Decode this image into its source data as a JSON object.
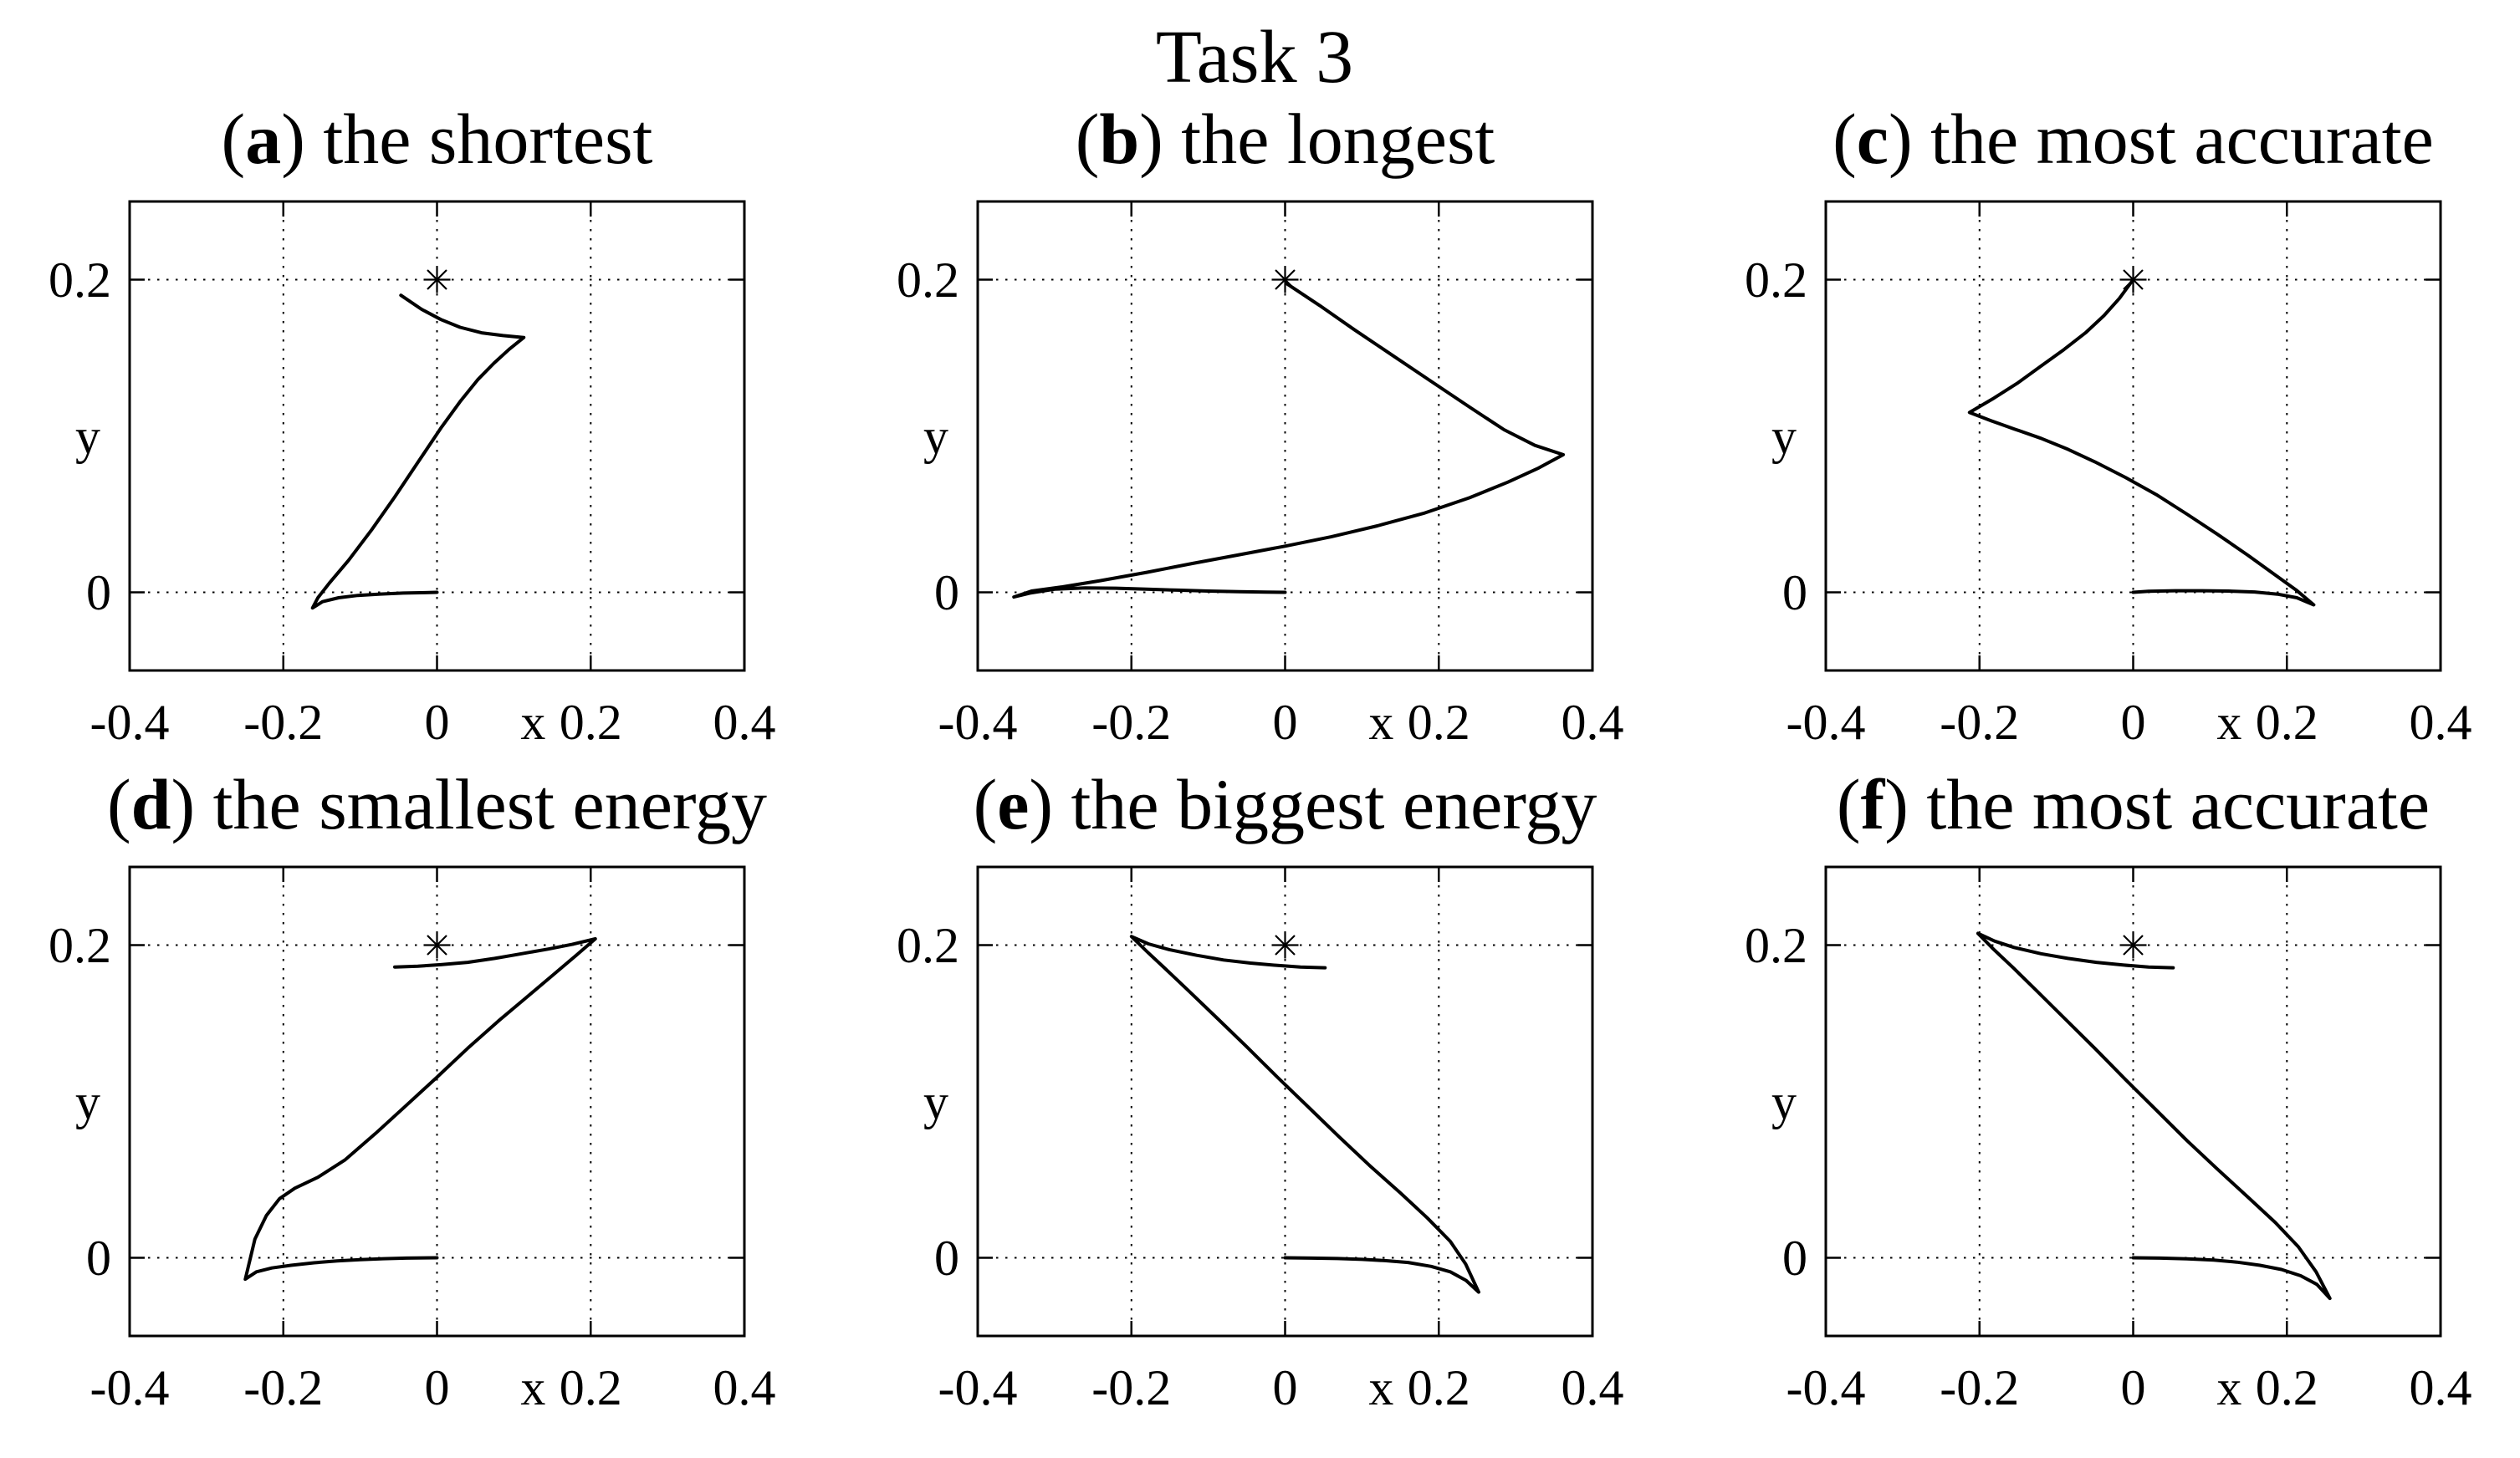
{
  "figure": {
    "title": "Task 3",
    "background_color": "#ffffff",
    "line_color": "#000000",
    "marker": "asterisk-star-icon"
  },
  "axes": {
    "xlabel": "x",
    "ylabel": "y",
    "xlim": [
      -0.4,
      0.4
    ],
    "ylim": [
      -0.05,
      0.25
    ],
    "xticks": [
      -0.4,
      -0.2,
      0,
      0.2,
      0.4
    ],
    "yticks": [
      0,
      0.2
    ],
    "xtick_labels": [
      "-0.4",
      "-0.2",
      "0",
      "0.2",
      "0.4"
    ],
    "ytick_labels": [
      "0",
      "0.2"
    ],
    "grid_xticks": [
      -0.2,
      0,
      0.2
    ],
    "grid_yticks": [
      0,
      0.2
    ],
    "grid_style": "dotted"
  },
  "chart_data": [
    {
      "type": "line",
      "panel": "a",
      "title_letter": "a",
      "title_text": "the shortest",
      "target": [
        0,
        0.2
      ],
      "trajectory": [
        [
          -0.047,
          0.19
        ],
        [
          -0.02,
          0.181
        ],
        [
          0.005,
          0.1745
        ],
        [
          0.03,
          0.1695
        ],
        [
          0.058,
          0.166
        ],
        [
          0.086,
          0.1642
        ],
        [
          0.113,
          0.163
        ],
        [
          0.094,
          0.1555
        ],
        [
          0.074,
          0.1465
        ],
        [
          0.053,
          0.136
        ],
        [
          0.03,
          0.122
        ],
        [
          0.005,
          0.105
        ],
        [
          -0.025,
          0.083
        ],
        [
          -0.055,
          0.061
        ],
        [
          -0.085,
          0.04
        ],
        [
          -0.115,
          0.0205
        ],
        [
          -0.14,
          0.006
        ],
        [
          -0.155,
          -0.0035
        ],
        [
          -0.162,
          -0.01
        ],
        [
          -0.149,
          -0.006
        ],
        [
          -0.128,
          -0.0035
        ],
        [
          -0.103,
          -0.002
        ],
        [
          -0.074,
          -0.0011
        ],
        [
          -0.044,
          -0.0005
        ],
        [
          -0.015,
          -0.0002
        ],
        [
          0.0,
          0.0
        ]
      ]
    },
    {
      "type": "line",
      "panel": "b",
      "title_letter": "b",
      "title_text": "the longest",
      "target": [
        0,
        0.2
      ],
      "trajectory": [
        [
          0.002,
          0.1975
        ],
        [
          0.045,
          0.1835
        ],
        [
          0.09,
          0.168
        ],
        [
          0.14,
          0.1515
        ],
        [
          0.19,
          0.135
        ],
        [
          0.24,
          0.1185
        ],
        [
          0.285,
          0.104
        ],
        [
          0.325,
          0.094
        ],
        [
          0.362,
          0.088
        ],
        [
          0.33,
          0.0795
        ],
        [
          0.29,
          0.0705
        ],
        [
          0.24,
          0.0605
        ],
        [
          0.18,
          0.0505
        ],
        [
          0.12,
          0.0425
        ],
        [
          0.06,
          0.0355
        ],
        [
          0.0,
          0.0295
        ],
        [
          -0.06,
          0.024
        ],
        [
          -0.12,
          0.0185
        ],
        [
          -0.18,
          0.0128
        ],
        [
          -0.24,
          0.0075
        ],
        [
          -0.29,
          0.0035
        ],
        [
          -0.33,
          0.0008
        ],
        [
          -0.353,
          -0.003
        ],
        [
          -0.332,
          -0.0005
        ],
        [
          -0.3,
          0.002
        ],
        [
          -0.26,
          0.0028
        ],
        [
          -0.22,
          0.0026
        ],
        [
          -0.18,
          0.002
        ],
        [
          -0.14,
          0.0014
        ],
        [
          -0.1,
          0.0008
        ],
        [
          -0.06,
          0.0004
        ],
        [
          -0.025,
          0.0001
        ],
        [
          0.0,
          0.0
        ]
      ]
    },
    {
      "type": "line",
      "panel": "c",
      "title_letter": "c",
      "title_text": "the most accurate",
      "target": [
        0,
        0.2
      ],
      "trajectory": [
        [
          0.0,
          0.2
        ],
        [
          -0.018,
          0.188
        ],
        [
          -0.038,
          0.177
        ],
        [
          -0.062,
          0.166
        ],
        [
          -0.09,
          0.1553
        ],
        [
          -0.12,
          0.1447
        ],
        [
          -0.15,
          0.134
        ],
        [
          -0.181,
          0.1243
        ],
        [
          -0.213,
          0.115
        ],
        [
          -0.185,
          0.1098
        ],
        [
          -0.155,
          0.1045
        ],
        [
          -0.12,
          0.0985
        ],
        [
          -0.085,
          0.0915
        ],
        [
          -0.05,
          0.0835
        ],
        [
          -0.01,
          0.0735
        ],
        [
          0.03,
          0.0625
        ],
        [
          0.07,
          0.05
        ],
        [
          0.11,
          0.037
        ],
        [
          0.15,
          0.0235
        ],
        [
          0.185,
          0.011
        ],
        [
          0.212,
          0.0015
        ],
        [
          0.235,
          -0.008
        ],
        [
          0.213,
          -0.0035
        ],
        [
          0.188,
          -0.0012
        ],
        [
          0.158,
          0.0002
        ],
        [
          0.124,
          0.0008
        ],
        [
          0.09,
          0.001
        ],
        [
          0.055,
          0.001
        ],
        [
          0.02,
          0.0007
        ],
        [
          0.0,
          0.0
        ]
      ]
    },
    {
      "type": "line",
      "panel": "d",
      "title_letter": "d",
      "title_text": "the smallest energy",
      "target": [
        0,
        0.2
      ],
      "trajectory": [
        [
          -0.055,
          0.186
        ],
        [
          -0.025,
          0.1865
        ],
        [
          0.005,
          0.1875
        ],
        [
          0.04,
          0.189
        ],
        [
          0.075,
          0.1915
        ],
        [
          0.11,
          0.1945
        ],
        [
          0.145,
          0.1975
        ],
        [
          0.176,
          0.2005
        ],
        [
          0.206,
          0.204
        ],
        [
          0.18,
          0.193
        ],
        [
          0.15,
          0.1805
        ],
        [
          0.115,
          0.166
        ],
        [
          0.08,
          0.1515
        ],
        [
          0.04,
          0.134
        ],
        [
          0.0,
          0.1155
        ],
        [
          -0.04,
          0.0975
        ],
        [
          -0.08,
          0.0795
        ],
        [
          -0.12,
          0.0625
        ],
        [
          -0.155,
          0.0515
        ],
        [
          -0.185,
          0.0445
        ],
        [
          -0.205,
          0.0378
        ],
        [
          -0.222,
          0.027
        ],
        [
          -0.237,
          0.012
        ],
        [
          -0.2495,
          -0.0137
        ],
        [
          -0.235,
          -0.009
        ],
        [
          -0.215,
          -0.0065
        ],
        [
          -0.19,
          -0.0048
        ],
        [
          -0.16,
          -0.0032
        ],
        [
          -0.13,
          -0.002
        ],
        [
          -0.1,
          -0.0012
        ],
        [
          -0.07,
          -0.0006
        ],
        [
          -0.04,
          -0.0002
        ],
        [
          0.0,
          0.0
        ]
      ]
    },
    {
      "type": "line",
      "panel": "e",
      "title_letter": "e",
      "title_text": "the biggest energy",
      "target": [
        0,
        0.2
      ],
      "trajectory": [
        [
          0.052,
          0.1855
        ],
        [
          0.02,
          0.186
        ],
        [
          -0.01,
          0.187
        ],
        [
          -0.045,
          0.1885
        ],
        [
          -0.08,
          0.1905
        ],
        [
          -0.115,
          0.1935
        ],
        [
          -0.15,
          0.197
        ],
        [
          -0.178,
          0.2008
        ],
        [
          -0.2,
          0.2055
        ],
        [
          -0.18,
          0.196
        ],
        [
          -0.155,
          0.1845
        ],
        [
          -0.125,
          0.1705
        ],
        [
          -0.09,
          0.154
        ],
        [
          -0.05,
          0.135
        ],
        [
          -0.01,
          0.1155
        ],
        [
          0.03,
          0.0965
        ],
        [
          0.07,
          0.0775
        ],
        [
          0.11,
          0.059
        ],
        [
          0.15,
          0.0415
        ],
        [
          0.185,
          0.0255
        ],
        [
          0.215,
          0.0105
        ],
        [
          0.235,
          -0.004
        ],
        [
          0.252,
          -0.022
        ],
        [
          0.2355,
          -0.0145
        ],
        [
          0.215,
          -0.009
        ],
        [
          0.19,
          -0.0055
        ],
        [
          0.16,
          -0.003
        ],
        [
          0.13,
          -0.0018
        ],
        [
          0.1,
          -0.001
        ],
        [
          0.068,
          -0.0005
        ],
        [
          0.034,
          -0.0002
        ],
        [
          0.0,
          0.0
        ]
      ]
    },
    {
      "type": "line",
      "panel": "f",
      "title_letter": "f",
      "title_text": "the most accurate",
      "target": [
        0,
        0.2
      ],
      "trajectory": [
        [
          0.052,
          0.1855
        ],
        [
          0.02,
          0.186
        ],
        [
          -0.012,
          0.1872
        ],
        [
          -0.048,
          0.189
        ],
        [
          -0.085,
          0.1915
        ],
        [
          -0.12,
          0.1945
        ],
        [
          -0.155,
          0.1985
        ],
        [
          -0.18,
          0.2025
        ],
        [
          -0.202,
          0.2075
        ],
        [
          -0.182,
          0.1975
        ],
        [
          -0.155,
          0.185
        ],
        [
          -0.125,
          0.1705
        ],
        [
          -0.09,
          0.1535
        ],
        [
          -0.05,
          0.134
        ],
        [
          -0.01,
          0.114
        ],
        [
          0.03,
          0.0945
        ],
        [
          0.07,
          0.075
        ],
        [
          0.11,
          0.0565
        ],
        [
          0.15,
          0.0385
        ],
        [
          0.185,
          0.0225
        ],
        [
          0.215,
          0.007
        ],
        [
          0.238,
          -0.009
        ],
        [
          0.256,
          -0.026
        ],
        [
          0.239,
          -0.017
        ],
        [
          0.218,
          -0.0115
        ],
        [
          0.193,
          -0.0075
        ],
        [
          0.165,
          -0.0048
        ],
        [
          0.135,
          -0.0028
        ],
        [
          0.105,
          -0.0015
        ],
        [
          0.07,
          -0.0007
        ],
        [
          0.035,
          -0.0002
        ],
        [
          0.0,
          0.0
        ]
      ]
    }
  ]
}
